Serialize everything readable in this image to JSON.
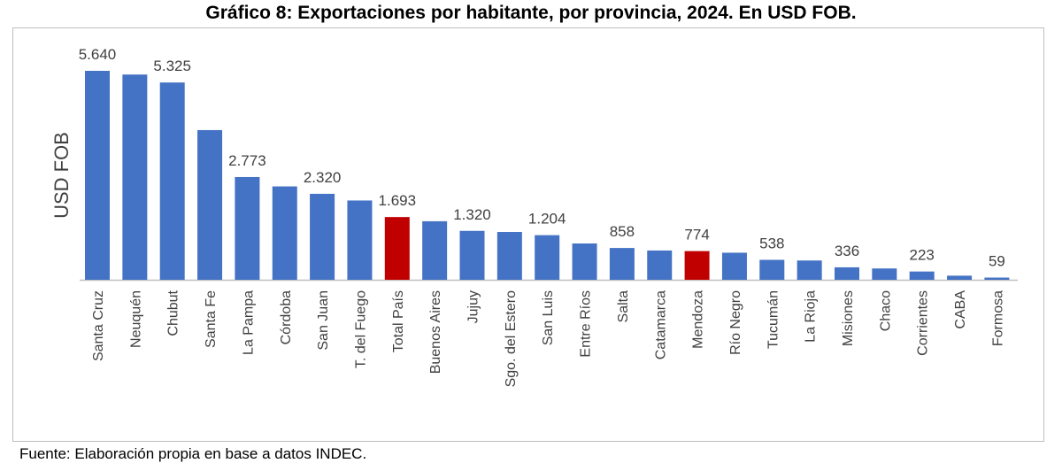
{
  "title": "Gráfico 8: Exportaciones por habitante, por provincia, 2024. En USD FOB.",
  "source": "Fuente: Elaboración propia en base a datos INDEC.",
  "chart_data": {
    "type": "bar",
    "ylabel": "USD FOB",
    "xlabel": "",
    "categories": [
      "Santa Cruz",
      "Neuquén",
      "Chubut",
      "Santa Fe",
      "La Pampa",
      "Córdoba",
      "San Juan",
      "T. del Fuego",
      "Total País",
      "Buenos Aires",
      "Jujuy",
      "Sgo. del Estero",
      "San Luis",
      "Entre Ríos",
      "Salta",
      "Catamarca",
      "Mendoza",
      "Río Negro",
      "Tucumán",
      "La Rioja",
      "Misiones",
      "Chaco",
      "Corrientes",
      "CABA",
      "Formosa"
    ],
    "values": [
      5640,
      5540,
      5325,
      4040,
      2773,
      2520,
      2320,
      2140,
      1693,
      1580,
      1320,
      1290,
      1204,
      980,
      858,
      790,
      774,
      730,
      538,
      520,
      336,
      305,
      223,
      110,
      59
    ],
    "data_labels": [
      "5.640",
      "",
      "5.325",
      "",
      "2.773",
      "",
      "2.320",
      "",
      "1.693",
      "",
      "1.320",
      "",
      "1.204",
      "",
      "858",
      "",
      "774",
      "",
      "538",
      "",
      "336",
      "",
      "223",
      "",
      "59"
    ],
    "highlight": [
      "Total País",
      "Mendoza"
    ],
    "ylim": [
      0,
      5640
    ],
    "grid": false,
    "colors": {
      "bar": "#4472c4",
      "highlight": "#c00000",
      "axis": "#bfbfbf",
      "text": "#404040"
    }
  }
}
